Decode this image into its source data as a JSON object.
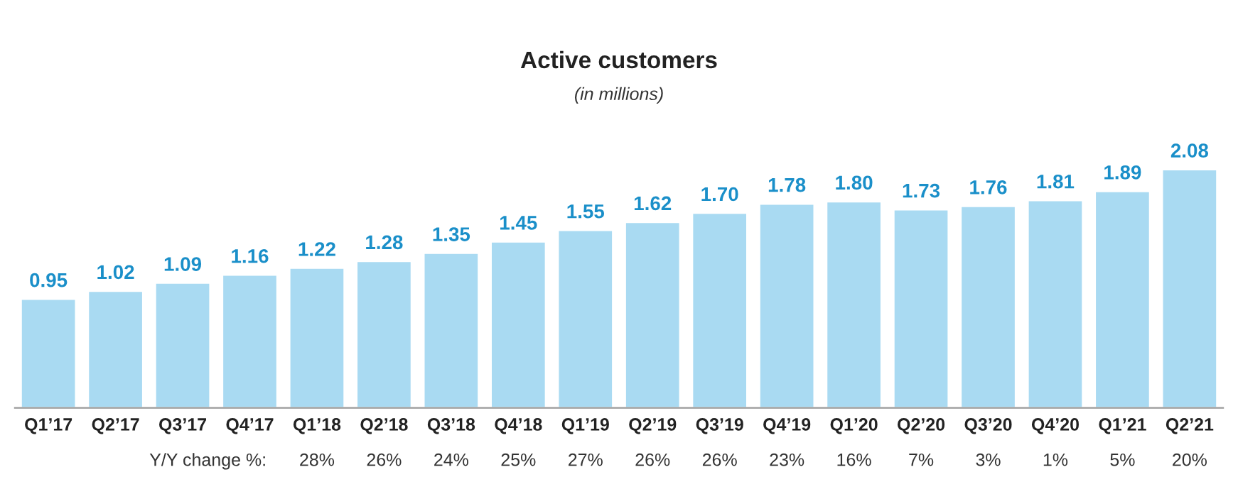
{
  "chart_data": {
    "type": "bar",
    "title": "Active customers",
    "subtitle": "(in millions)",
    "categories": [
      "Q1’17",
      "Q2’17",
      "Q3’17",
      "Q4’17",
      "Q1’18",
      "Q2’18",
      "Q3’18",
      "Q4’18",
      "Q1’19",
      "Q2’19",
      "Q3’19",
      "Q4’19",
      "Q1’20",
      "Q2’20",
      "Q3’20",
      "Q4’20",
      "Q1’21",
      "Q2’21"
    ],
    "values": [
      0.95,
      1.02,
      1.09,
      1.16,
      1.22,
      1.28,
      1.35,
      1.45,
      1.55,
      1.62,
      1.7,
      1.78,
      1.8,
      1.73,
      1.76,
      1.81,
      1.89,
      2.08
    ],
    "color": "#a9daf2",
    "value_labels": [
      "0.95",
      "1.02",
      "1.09",
      "1.16",
      "1.22",
      "1.28",
      "1.35",
      "1.45",
      "1.55",
      "1.62",
      "1.70",
      "1.78",
      "1.80",
      "1.73",
      "1.76",
      "1.81",
      "1.89",
      "2.08"
    ],
    "annotations": [
      "Y/Y change %:",
      "28%",
      "26%",
      "24%",
      "25%",
      "27%",
      "26%",
      "26%",
      "23%",
      "16%",
      "7%",
      "3%",
      "1%",
      "5%",
      "20%"
    ]
  }
}
